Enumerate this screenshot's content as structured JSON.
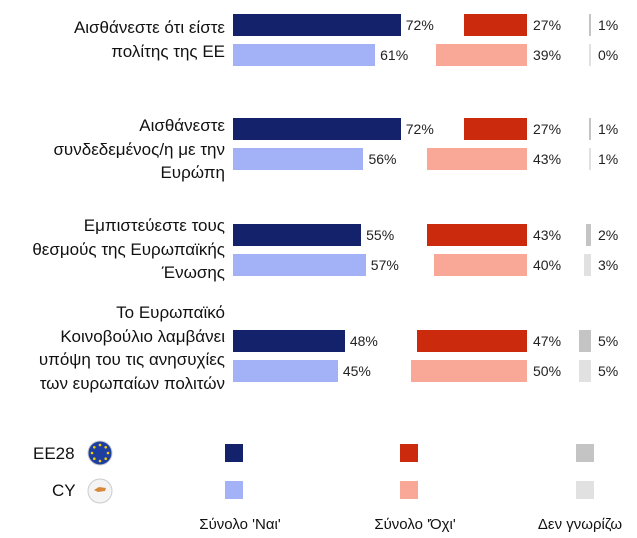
{
  "chart_data": {
    "type": "bar",
    "categories": [
      "Αισθάνεστε ότι είστε\nπολίτης της ΕΕ",
      "Αισθάνεστε\nσυνδεδεμένος/η με την\nΕυρώπη",
      "Εμπιστεύεστε τους\nθεσμούς της Ευρωπαϊκής\nΈνωσης",
      "Το Ευρωπαϊκό\nΚοινοβούλιο λαμβάνει\nυπόψη του τις ανησυχίες\nτων ευρωπαίων πολιτών"
    ],
    "columns": [
      "Σύνολο 'Ναι'",
      "Σύνολο 'Όχι'",
      "Δεν γνωρίζω"
    ],
    "series": [
      {
        "name": "EE28",
        "colors": [
          "#14226b",
          "#cc2a0c",
          "#c4c4c4"
        ],
        "values": [
          [
            72,
            27,
            1
          ],
          [
            72,
            27,
            1
          ],
          [
            55,
            43,
            2
          ],
          [
            48,
            47,
            5
          ]
        ],
        "value_labels": [
          [
            "72%",
            "27%",
            "1%"
          ],
          [
            "72%",
            "27%",
            "1%"
          ],
          [
            "55%",
            "43%",
            "2%"
          ],
          [
            "48%",
            "47%",
            "5%"
          ]
        ]
      },
      {
        "name": "CY",
        "colors": [
          "#a3b2f7",
          "#f9a898",
          "#e1e1e1"
        ],
        "values": [
          [
            61,
            39,
            0
          ],
          [
            56,
            43,
            1
          ],
          [
            57,
            40,
            3
          ],
          [
            45,
            50,
            5
          ]
        ],
        "value_labels": [
          [
            "61%",
            "39%",
            "0%"
          ],
          [
            "56%",
            "43%",
            "1%"
          ],
          [
            "57%",
            "40%",
            "3%"
          ],
          [
            "45%",
            "50%",
            "5%"
          ]
        ]
      }
    ],
    "xlim": [
      0,
      100
    ]
  }
}
